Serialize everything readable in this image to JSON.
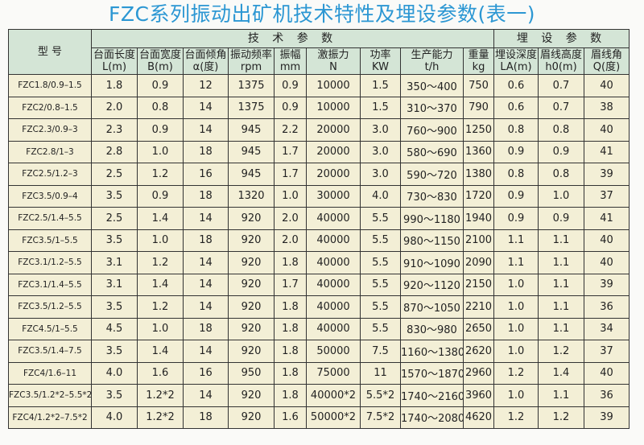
{
  "title": "FZC系列振动出矿机技术特性及埋设参数(表一)",
  "header": {
    "model": "型 号",
    "group_tech": "技 术 参 数",
    "group_embed": "埋 设 参 数",
    "columns": [
      [
        "台面长度",
        "L(m)"
      ],
      [
        "台面宽度",
        "B(m)"
      ],
      [
        "台面倾角",
        "α(度)"
      ],
      [
        "振动频率",
        "rpm"
      ],
      [
        "振幅",
        "mm"
      ],
      [
        "激振力",
        "N"
      ],
      [
        "功率",
        "KW"
      ],
      [
        "生产能力",
        "t/h"
      ],
      [
        "重量",
        "kg"
      ],
      [
        "埋设深度",
        "LA(m)"
      ],
      [
        "眉线高度",
        "h0(m)"
      ],
      [
        "眉线角",
        "Q(度)"
      ]
    ]
  },
  "rows": [
    [
      "FZC1.8/0.9–1.5",
      "1.8",
      "0.9",
      "12",
      "1375",
      "0.9",
      "10000",
      "1.5",
      "350～400",
      "750",
      "0.6",
      "0.7",
      "40"
    ],
    [
      "FZC2/0.8–1.5",
      "2.0",
      "0.8",
      "14",
      "1375",
      "0.9",
      "10000",
      "1.5",
      "310～370",
      "790",
      "0.6",
      "0.7",
      "38"
    ],
    [
      "FZC2.3/0.9–3",
      "2.3",
      "0.9",
      "14",
      "945",
      "2.2",
      "20000",
      "3.0",
      "760～900",
      "1250",
      "0.8",
      "0.8",
      "40"
    ],
    [
      "FZC2.8/1–3",
      "2.8",
      "1.0",
      "18",
      "945",
      "1.7",
      "20000",
      "3.0",
      "580～690",
      "1360",
      "0.9",
      "0.9",
      "41"
    ],
    [
      "FZC2.5/1.2–3",
      "2.5",
      "1.2",
      "16",
      "945",
      "1.7",
      "20000",
      "3.0",
      "590～720",
      "1380",
      "0.8",
      "0.8",
      "39"
    ],
    [
      "FZC3.5/0.9–4",
      "3.5",
      "0.9",
      "18",
      "1320",
      "1.0",
      "30000",
      "4.0",
      "730～830",
      "1720",
      "0.9",
      "1.0",
      "37"
    ],
    [
      "FZC2.5/1.4–5.5",
      "2.5",
      "1.4",
      "14",
      "920",
      "2.0",
      "40000",
      "5.5",
      "990～1180",
      "1940",
      "0.9",
      "0.9",
      "41"
    ],
    [
      "FZC3.5/1–5.5",
      "3.5",
      "1.0",
      "18",
      "920",
      "2.0",
      "40000",
      "5.5",
      "980～1150",
      "2100",
      "1.1",
      "1.1",
      "40"
    ],
    [
      "FZC3.1/1.2–5.5",
      "3.1",
      "1.2",
      "14",
      "920",
      "1.8",
      "40000",
      "5.5",
      "910～1090",
      "2090",
      "1.1",
      "1.1",
      "40"
    ],
    [
      "FZC3.1/1.4–5.5",
      "3.1",
      "1.4",
      "14",
      "920",
      "1.7",
      "40000",
      "5.5",
      "920～1120",
      "2150",
      "1.0",
      "1.1",
      "39"
    ],
    [
      "FZC3.5/1.2–5.5",
      "3.5",
      "1.2",
      "14",
      "920",
      "1.8",
      "40000",
      "5.5",
      "870～1050",
      "2210",
      "1.0",
      "1.1",
      "36"
    ],
    [
      "FZC4.5/1–5.5",
      "4.5",
      "1.0",
      "18",
      "920",
      "1.8",
      "40000",
      "5.5",
      "830～980",
      "2650",
      "1.0",
      "1.1",
      "34"
    ],
    [
      "FZC3.5/1.4–7.5",
      "3.5",
      "1.4",
      "14",
      "920",
      "1.8",
      "50000",
      "7.5",
      "1160～1380",
      "2620",
      "1.0",
      "1.2",
      "37"
    ],
    [
      "FZC4/1.6–11",
      "4.0",
      "1.6",
      "16",
      "950",
      "1.8",
      "75000",
      "11",
      "1570～1870",
      "2960",
      "1.2",
      "1.4",
      "40"
    ],
    [
      "FZC3.5/1.2*2–5.5*2",
      "3.5",
      "1.2*2",
      "14",
      "920",
      "1.8",
      "40000*2",
      "5.5*2",
      "1740～2160",
      "3960",
      "1.0",
      "1.1",
      "36"
    ],
    [
      "FZC4/1.2*2–7.5*2",
      "4.0",
      "1.2*2",
      "18",
      "920",
      "1.6",
      "50000*2",
      "7.5*2",
      "1740～2080",
      "4620",
      "1.2",
      "1.2",
      "39"
    ]
  ]
}
